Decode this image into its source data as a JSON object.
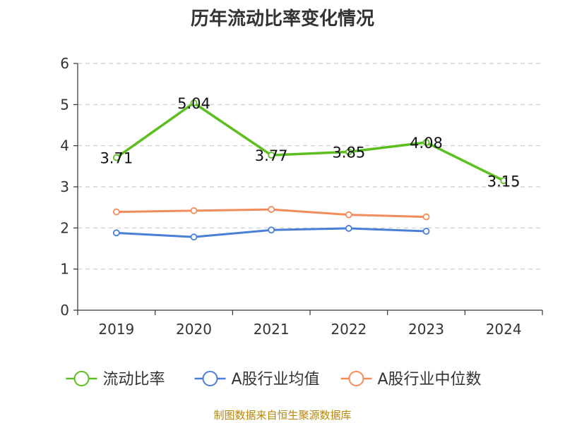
{
  "chart_data": {
    "type": "line",
    "title": "历年流动比率变化情况",
    "categories": [
      "2019",
      "2020",
      "2021",
      "2022",
      "2023",
      "2024"
    ],
    "ylim": [
      0,
      6
    ],
    "yticks": [
      0,
      1,
      2,
      3,
      4,
      5,
      6
    ],
    "grid": true,
    "legend_position": "bottom",
    "series": [
      {
        "name": "流动比率",
        "color": "#5cbf1f",
        "values": [
          3.71,
          5.04,
          3.77,
          3.85,
          4.08,
          3.15
        ],
        "labels": [
          "3.71",
          "5.04",
          "3.77",
          "3.85",
          "4.08",
          "3.15"
        ]
      },
      {
        "name": "A股行业均值",
        "color": "#4a7fd6",
        "values": [
          1.88,
          1.78,
          1.95,
          1.99,
          1.92,
          null
        ]
      },
      {
        "name": "A股行业中位数",
        "color": "#f28c5a",
        "values": [
          2.39,
          2.42,
          2.45,
          2.32,
          2.27,
          null
        ]
      }
    ]
  },
  "source_note": "制图数据来自恒生聚源数据库"
}
